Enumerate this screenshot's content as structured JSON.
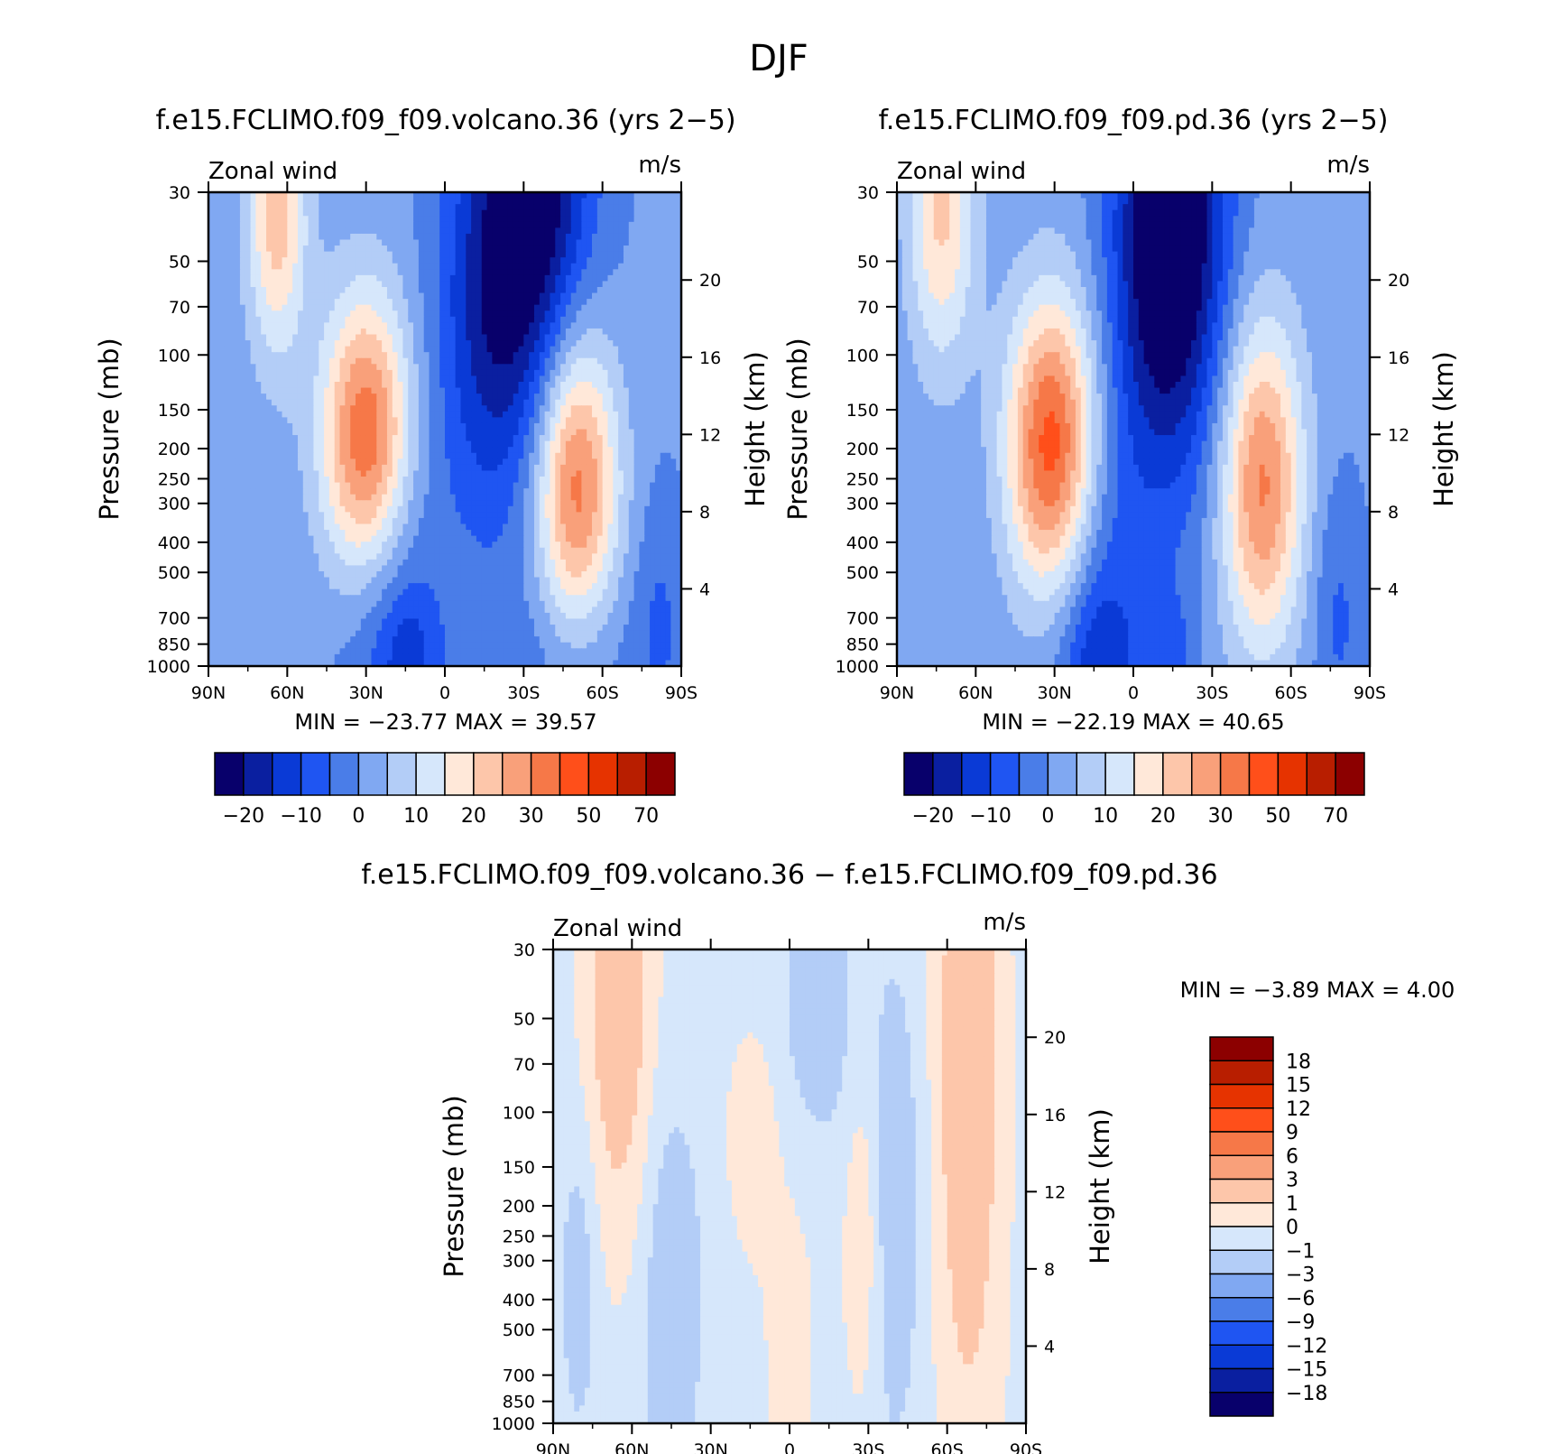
{
  "figure": {
    "title": "DJF"
  },
  "colors": {
    "full_palette": [
      "#08006b",
      "#0a1fa0",
      "#0a3ad6",
      "#1f55f2",
      "#4a7de8",
      "#80a8f2",
      "#b3cdf7",
      "#d6e7fb",
      "#ffe8d9",
      "#fdc6aa",
      "#f9a07a",
      "#f67848",
      "#ff4f1a",
      "#e63300",
      "#b81e00",
      "#8c0000"
    ],
    "diff_palette": [
      "#08006b",
      "#0a1fa0",
      "#0a3ad6",
      "#1f55f2",
      "#4a7de8",
      "#80a8f2",
      "#b3cdf7",
      "#d6e7fb",
      "#ffe8d9",
      "#fdc6aa",
      "#f9a07a",
      "#f67848",
      "#ff4f1a",
      "#e63300",
      "#b81e00",
      "#8c0000"
    ]
  },
  "chart_data": [
    {
      "type": "heatmap",
      "id": "volcano",
      "title": "f.e15.FCLIMO.f09_f09.volcano.36 (yrs 2−5)",
      "left_label": "Zonal wind",
      "right_label": "m/s",
      "ylabel": "Pressure (mb)",
      "ylabel_right": "Height (km)",
      "x_tick_labels": [
        "90N",
        "60N",
        "30N",
        "0",
        "30S",
        "60S",
        "90S"
      ],
      "x_ticks": [
        -90,
        -60,
        -30,
        0,
        30,
        60,
        90
      ],
      "xlim": [
        -90,
        90
      ],
      "y_tick_labels": [
        "30",
        "50",
        "70",
        "100",
        "150",
        "200",
        "250",
        "300",
        "400",
        "500",
        "700",
        "850",
        "1000"
      ],
      "y_ticks": [
        30,
        50,
        70,
        100,
        150,
        200,
        250,
        300,
        400,
        500,
        700,
        850,
        1000
      ],
      "ylim": [
        1000,
        30
      ],
      "yscale": "log",
      "height_tick_labels": [
        "4",
        "8",
        "12",
        "16",
        "20"
      ],
      "height_ticks": [
        4,
        8,
        12,
        16,
        20
      ],
      "min_label": "MIN =",
      "min": "−23.77",
      "max_label": "MAX =",
      "max": "39.57",
      "colorbar_labels": [
        "−20",
        "−10",
        "0",
        "10",
        "20",
        "30",
        "50",
        "70"
      ],
      "colorbar_levels": [
        -25,
        -20,
        -15,
        -10,
        -5,
        0,
        5,
        10,
        15,
        20,
        25,
        30,
        40,
        50,
        60,
        70
      ],
      "features": [
        {
          "lat": 35,
          "p": 30,
          "value": -23,
          "wx": 15,
          "wl": 1.0
        },
        {
          "lat": 18,
          "p": 80,
          "value": -16,
          "wx": 15,
          "wl": 1.1
        },
        {
          "lat": -22,
          "p": 600,
          "value": -10,
          "wx": 14,
          "wl": 0.9
        },
        {
          "lat": -13,
          "p": 950,
          "value": -8,
          "wx": 8,
          "wl": 0.35
        },
        {
          "lat": 48,
          "p": 950,
          "value": -6,
          "wx": 20,
          "wl": 0.5
        },
        {
          "lat": -30,
          "p": 190,
          "value": 36,
          "wx": 12,
          "wl": 0.75
        },
        {
          "lat": -64,
          "p": 35,
          "value": 22,
          "wx": 8,
          "wl": 0.75
        },
        {
          "lat": 50,
          "p": 260,
          "value": 32,
          "wx": 11,
          "wl": 0.8
        },
        {
          "lat": 82,
          "p": 700,
          "value": -6,
          "wx": 7,
          "wl": 0.7
        }
      ],
      "background": -4
    },
    {
      "type": "heatmap",
      "id": "pd",
      "title": "f.e15.FCLIMO.f09_f09.pd.36 (yrs 2−5)",
      "left_label": "Zonal wind",
      "right_label": "m/s",
      "ylabel": "Pressure (mb)",
      "ylabel_right": "Height (km)",
      "x_tick_labels": [
        "90N",
        "60N",
        "30N",
        "0",
        "30S",
        "60S",
        "90S"
      ],
      "x_ticks": [
        -90,
        -60,
        -30,
        0,
        30,
        60,
        90
      ],
      "xlim": [
        -90,
        90
      ],
      "y_tick_labels": [
        "30",
        "50",
        "70",
        "100",
        "150",
        "200",
        "250",
        "300",
        "400",
        "500",
        "700",
        "850",
        "1000"
      ],
      "y_ticks": [
        30,
        50,
        70,
        100,
        150,
        200,
        250,
        300,
        400,
        500,
        700,
        850,
        1000
      ],
      "ylim": [
        1000,
        30
      ],
      "yscale": "log",
      "height_tick_labels": [
        "4",
        "8",
        "12",
        "16",
        "20"
      ],
      "height_ticks": [
        4,
        8,
        12,
        16,
        20
      ],
      "min_label": "MIN =",
      "min": "−22.19",
      "max_label": "MAX =",
      "max": "40.65",
      "colorbar_labels": [
        "−20",
        "−10",
        "0",
        "10",
        "20",
        "30",
        "50",
        "70"
      ],
      "colorbar_levels": [
        -25,
        -20,
        -15,
        -10,
        -5,
        0,
        5,
        10,
        15,
        20,
        25,
        30,
        40,
        50,
        60,
        70
      ],
      "features": [
        {
          "lat": 15,
          "p": 30,
          "value": -22,
          "wx": 14,
          "wl": 1.0
        },
        {
          "lat": 12,
          "p": 80,
          "value": -15,
          "wx": 15,
          "wl": 1.1
        },
        {
          "lat": -15,
          "p": 600,
          "value": -10,
          "wx": 14,
          "wl": 0.9
        },
        {
          "lat": -13,
          "p": 950,
          "value": -8,
          "wx": 8,
          "wl": 0.35
        },
        {
          "lat": 12,
          "p": 950,
          "value": -8,
          "wx": 8,
          "wl": 0.35
        },
        {
          "lat": -31,
          "p": 200,
          "value": 38,
          "wx": 12,
          "wl": 0.78
        },
        {
          "lat": -73,
          "p": 35,
          "value": 20,
          "wx": 9,
          "wl": 0.8
        },
        {
          "lat": 49,
          "p": 260,
          "value": 30,
          "wx": 11,
          "wl": 0.85
        },
        {
          "lat": 78,
          "p": 700,
          "value": -7,
          "wx": 7,
          "wl": 0.7
        }
      ],
      "background": -4
    },
    {
      "type": "heatmap",
      "id": "diff",
      "title": "f.e15.FCLIMO.f09_f09.volcano.36 − f.e15.FCLIMO.f09_f09.pd.36",
      "left_label": "Zonal wind",
      "right_label": "m/s",
      "ylabel": "Pressure (mb)",
      "ylabel_right": "Height (km)",
      "x_tick_labels": [
        "90N",
        "60N",
        "30N",
        "0",
        "30S",
        "60S",
        "90S"
      ],
      "x_ticks": [
        -90,
        -60,
        -30,
        0,
        30,
        60,
        90
      ],
      "xlim": [
        -90,
        90
      ],
      "y_tick_labels": [
        "30",
        "50",
        "70",
        "100",
        "150",
        "200",
        "250",
        "300",
        "400",
        "500",
        "700",
        "850",
        "1000"
      ],
      "y_ticks": [
        30,
        50,
        70,
        100,
        150,
        200,
        250,
        300,
        400,
        500,
        700,
        850,
        1000
      ],
      "ylim": [
        1000,
        30
      ],
      "yscale": "log",
      "height_tick_labels": [
        "4",
        "8",
        "12",
        "16",
        "20"
      ],
      "height_ticks": [
        4,
        8,
        12,
        16,
        20
      ],
      "min_label": "MIN =",
      "min": "−3.89",
      "max_label": "MAX =",
      "max": "4.00",
      "colorbar_labels": [
        "18",
        "15",
        "12",
        "9",
        "6",
        "3",
        "1",
        "0",
        "−1",
        "−3",
        "−6",
        "−9",
        "−12",
        "−15",
        "−18"
      ],
      "colorbar_levels": [
        -18,
        -15,
        -12,
        -9,
        -6,
        -3,
        -1,
        0,
        1,
        3,
        6,
        9,
        12,
        15,
        18
      ],
      "features": [
        {
          "lat": -65,
          "p": 40,
          "value": 2.5,
          "wx": 9,
          "wl": 1.3
        },
        {
          "lat": 68,
          "p": 60,
          "value": 2.6,
          "wx": 9,
          "wl": 1.4
        },
        {
          "lat": -45,
          "p": 400,
          "value": -1.6,
          "wx": 8,
          "wl": 1.0
        },
        {
          "lat": 40,
          "p": 200,
          "value": -1.4,
          "wx": 8,
          "wl": 1.3
        },
        {
          "lat": 10,
          "p": 50,
          "value": -1.5,
          "wx": 10,
          "wl": 0.7
        },
        {
          "lat": -80,
          "p": 350,
          "value": -1.3,
          "wx": 5,
          "wl": 0.8
        },
        {
          "lat": 28,
          "p": 250,
          "value": 1.4,
          "wx": 5,
          "wl": 0.9
        },
        {
          "lat": -15,
          "p": 120,
          "value": 1.2,
          "wx": 6,
          "wl": 0.5
        },
        {
          "lat": 0,
          "p": 400,
          "value": 0.6,
          "wx": 10,
          "wl": 1.6
        },
        {
          "lat": 68,
          "p": 700,
          "value": 0.8,
          "wx": 10,
          "wl": 1.2
        }
      ],
      "background": -0.4
    }
  ]
}
